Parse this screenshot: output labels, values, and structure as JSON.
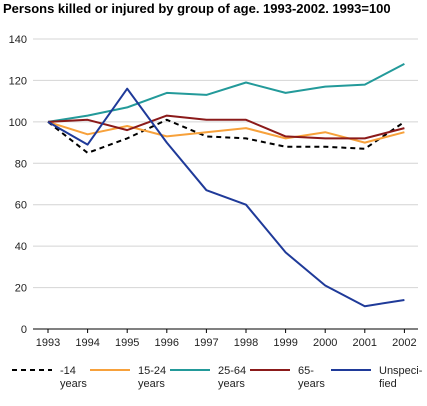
{
  "chart_data": {
    "type": "line",
    "title": "Persons killed or injured by group of age. 1993-2002. 1993=100",
    "xlabel": "",
    "ylabel": "",
    "x": [
      "1993",
      "1994",
      "1995",
      "1996",
      "1997",
      "1998",
      "1999",
      "2000",
      "2001",
      "2002"
    ],
    "ylim": [
      0,
      140
    ],
    "yticks": [
      0,
      20,
      40,
      60,
      80,
      100,
      120,
      140
    ],
    "grid": "horizontal",
    "legend_position": "bottom",
    "series": [
      {
        "name": "-14 years",
        "color": "#000000",
        "dashed": true,
        "values": [
          100,
          85,
          92,
          101,
          93,
          92,
          88,
          88,
          87,
          100
        ]
      },
      {
        "name": "15-24 years",
        "color": "#f7a13b",
        "dashed": false,
        "values": [
          100,
          94,
          98,
          93,
          95,
          97,
          92,
          95,
          90,
          95
        ]
      },
      {
        "name": "25-64 years",
        "color": "#239a9a",
        "dashed": false,
        "values": [
          100,
          103,
          107,
          114,
          113,
          119,
          114,
          117,
          118,
          128
        ]
      },
      {
        "name": "65- years",
        "color": "#8b1a1a",
        "dashed": false,
        "values": [
          100,
          101,
          96,
          103,
          101,
          101,
          93,
          92,
          92,
          97
        ]
      },
      {
        "name": "Unspeci- fied",
        "color": "#1f3a99",
        "dashed": false,
        "values": [
          100,
          89,
          116,
          90,
          67,
          60,
          37,
          21,
          11,
          14
        ]
      }
    ],
    "legend_lines": [
      [
        "-14",
        "years"
      ],
      [
        "15-24",
        "years"
      ],
      [
        "25-64",
        "years"
      ],
      [
        "65-",
        "years"
      ],
      [
        "Unspeci-",
        "fied"
      ]
    ]
  }
}
